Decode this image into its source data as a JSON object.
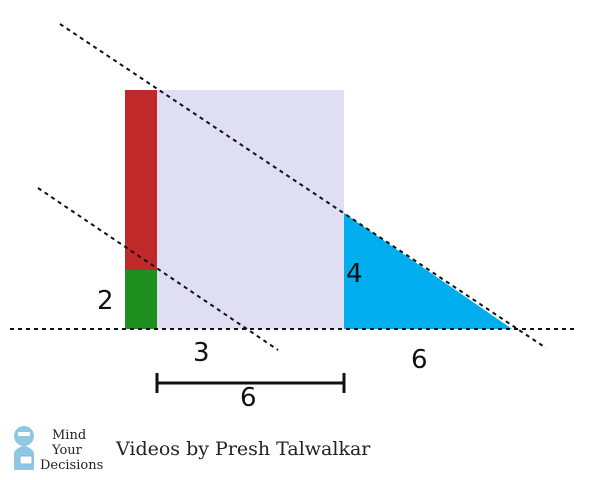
{
  "labels": {
    "green_height": "2",
    "segment_3": "3",
    "triangle_height": "4",
    "triangle_base": "6",
    "bracket_length": "6"
  },
  "colors": {
    "square": "#e0def2",
    "red": "#c0292a",
    "green": "#1f8f1f",
    "triangle": "#00aeef",
    "lines": "#111111"
  },
  "logo": {
    "line1": "Mind",
    "line2": "Your",
    "line3": "Decisions"
  },
  "credit": "Videos by Presh Talwalkar"
}
